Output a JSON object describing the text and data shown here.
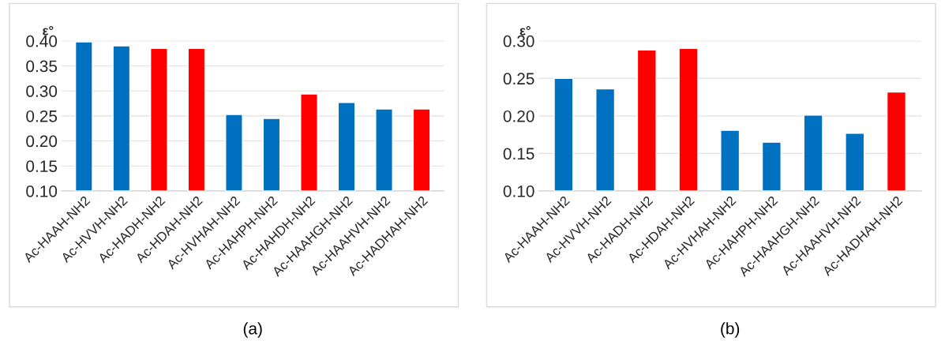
{
  "chart_data": [
    {
      "type": "bar",
      "ylabel": "ε°",
      "categories": [
        "Ac-HAAH-NH2",
        "Ac-HVVH-NH2",
        "Ac-HADH-NH2",
        "Ac-HDAH-NH2",
        "Ac-HVHAH-NH2",
        "Ac-HAHPH-NH2",
        "Ac-HAHDH-NH2",
        "Ac-HAAHGH-NH2",
        "Ac-HAAHVH-NH2",
        "Ac-HADHAH-NH2"
      ],
      "values": [
        0.398,
        0.39,
        0.385,
        0.385,
        0.253,
        0.245,
        0.294,
        0.277,
        0.264,
        0.264
      ],
      "colors": [
        "#0070c0",
        "#0070c0",
        "#ff0000",
        "#ff0000",
        "#0070c0",
        "#0070c0",
        "#ff0000",
        "#0070c0",
        "#0070c0",
        "#ff0000"
      ],
      "ylim": [
        0.1,
        0.4
      ],
      "yticks": [
        {
          "value": 0.1,
          "label": "0.10"
        },
        {
          "value": 0.15,
          "label": "0.15"
        },
        {
          "value": 0.2,
          "label": "0.20"
        },
        {
          "value": 0.25,
          "label": "0.25"
        },
        {
          "value": 0.3,
          "label": "0.30"
        },
        {
          "value": 0.35,
          "label": "0.35"
        },
        {
          "value": 0.4,
          "label": "0.40"
        }
      ],
      "grid": "y",
      "annotations": [
        "(a)"
      ]
    },
    {
      "type": "bar",
      "ylabel": "ε°",
      "categories": [
        "Ac-HAAH-NH2",
        "Ac-HVVH-NH2",
        "Ac-HADH-NH2",
        "Ac-HDAH-NH2",
        "Ac-HVHAH-NH2",
        "Ac-HAHPH-NH2",
        "Ac-HAAHGH-NH2",
        "Ac-HAAHVH-NH2",
        "Ac-HADHAH-NH2"
      ],
      "values": [
        0.25,
        0.236,
        0.288,
        0.29,
        0.181,
        0.165,
        0.201,
        0.177,
        0.232
      ],
      "colors": [
        "#0070c0",
        "#0070c0",
        "#ff0000",
        "#ff0000",
        "#0070c0",
        "#0070c0",
        "#0070c0",
        "#0070c0",
        "#ff0000"
      ],
      "ylim": [
        0.1,
        0.3
      ],
      "yticks": [
        {
          "value": 0.1,
          "label": "0.10"
        },
        {
          "value": 0.15,
          "label": "0.15"
        },
        {
          "value": 0.2,
          "label": "0.20"
        },
        {
          "value": 0.25,
          "label": "0.25"
        },
        {
          "value": 0.3,
          "label": "0.30"
        }
      ],
      "grid": "y",
      "annotations": [
        "(b)"
      ]
    }
  ]
}
